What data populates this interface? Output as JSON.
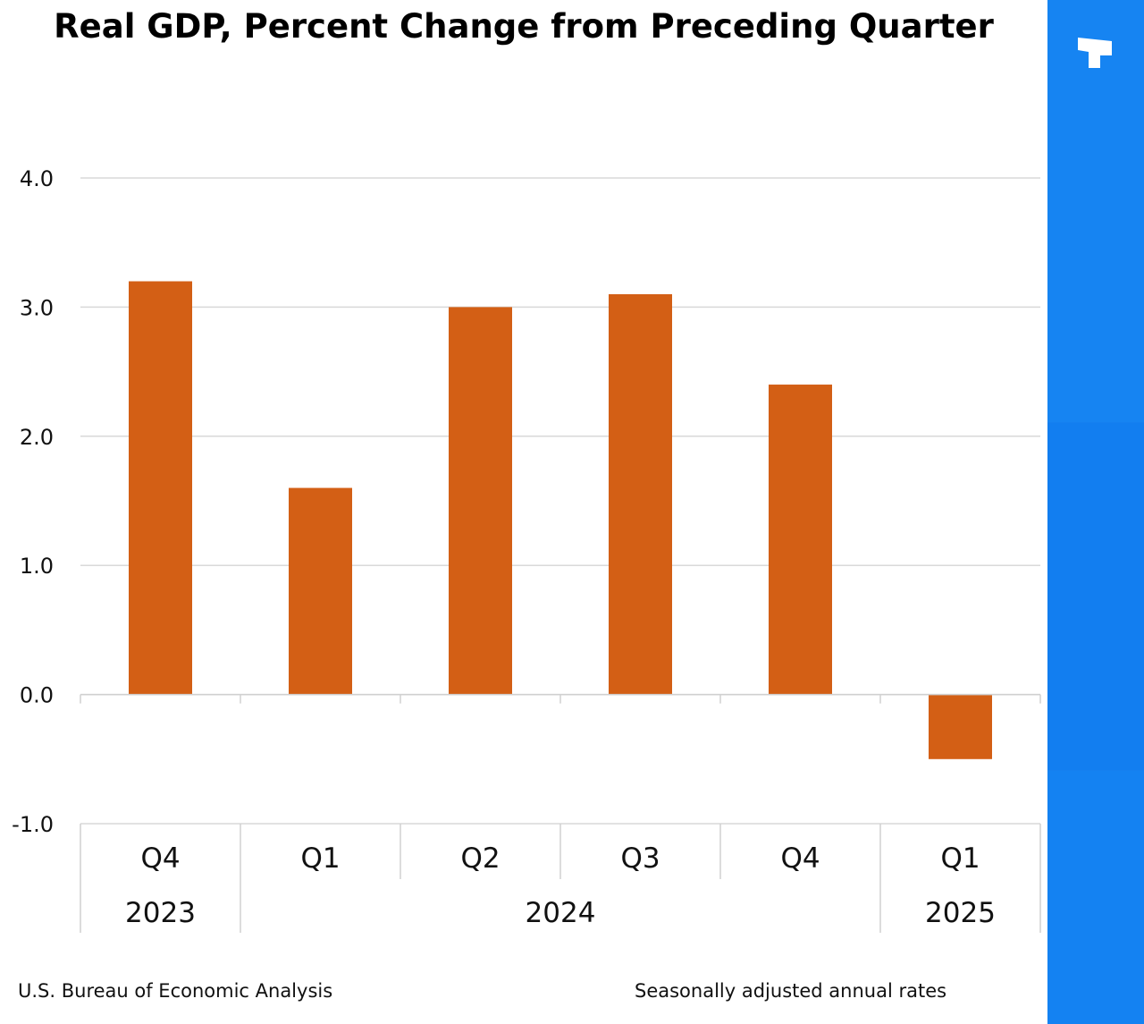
{
  "chart_data": {
    "type": "bar",
    "title": "Real GDP, Percent Change from Preceding Quarter",
    "categories": [
      "Q4",
      "Q1",
      "Q2",
      "Q3",
      "Q4",
      "Q1"
    ],
    "years": [
      {
        "label": "2023",
        "span": [
          0,
          0
        ]
      },
      {
        "label": "2024",
        "span": [
          1,
          4
        ]
      },
      {
        "label": "2025",
        "span": [
          5,
          5
        ]
      }
    ],
    "values": [
      3.2,
      1.6,
      3.0,
      3.1,
      2.4,
      -0.5
    ],
    "ylim": [
      -1.0,
      4.0
    ],
    "yticks": [
      "4.0",
      "3.0",
      "2.0",
      "1.0",
      "0.0",
      "-1.0"
    ],
    "ytick_values": [
      4.0,
      3.0,
      2.0,
      1.0,
      0.0,
      -1.0
    ],
    "xlabel": "",
    "ylabel": "",
    "grid": true,
    "bar_color": "#d35f15",
    "grid_color": "#d9d9d9"
  },
  "footer": {
    "source": "U.S. Bureau of Economic Analysis",
    "note": "Seasonally adjusted annual rates"
  },
  "sidebar": {
    "accent_color": "#1580f0",
    "icon": "brand-logo-icon"
  }
}
